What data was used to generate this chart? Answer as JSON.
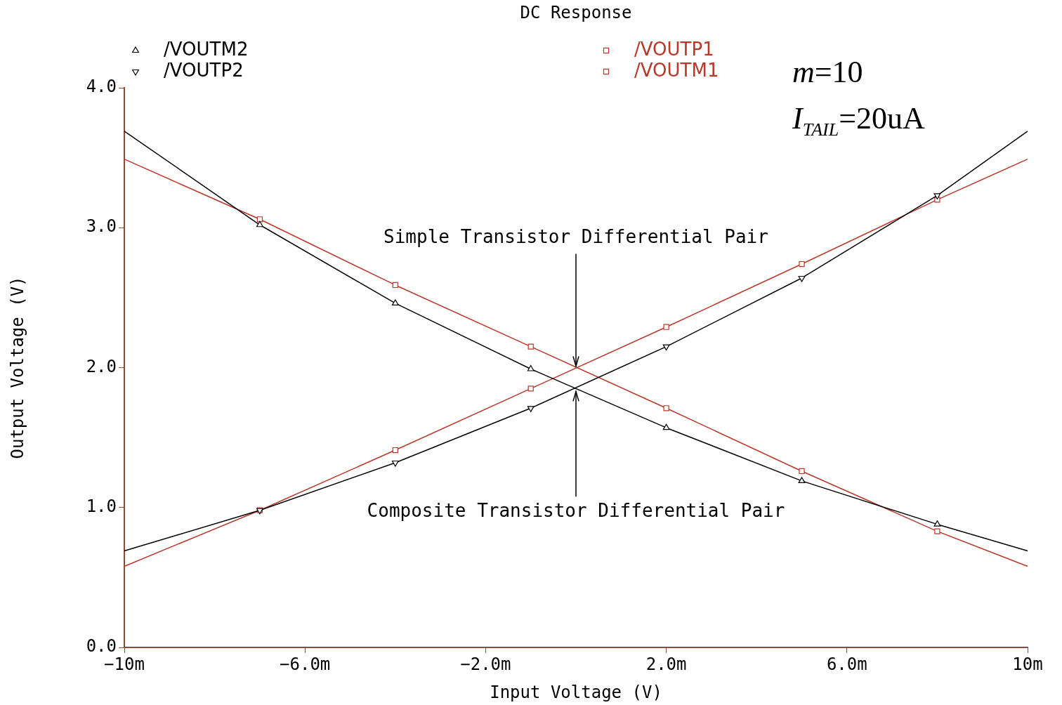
{
  "chart_data": {
    "type": "line",
    "title": "DC Response",
    "xlabel": "Input Voltage (V)",
    "ylabel": "Output Voltage (V)",
    "x": [
      -10,
      -7,
      -4,
      -1,
      2,
      5,
      8,
      10
    ],
    "series": [
      {
        "name": "/VOUTM2",
        "color": "#000000",
        "marker": "triangle",
        "values": [
          3.69,
          3.02,
          2.46,
          1.99,
          1.57,
          1.19,
          0.88,
          0.69
        ]
      },
      {
        "name": "/VOUTP2",
        "color": "#000000",
        "marker": "triangle",
        "values": [
          0.69,
          0.98,
          1.32,
          1.71,
          2.15,
          2.64,
          3.23,
          3.69
        ]
      },
      {
        "name": "/VOUTP1",
        "color": "#b8382a",
        "marker": "square",
        "values": [
          0.58,
          0.98,
          1.41,
          1.85,
          2.29,
          2.74,
          3.2,
          3.49
        ]
      },
      {
        "name": "/VOUTM1",
        "color": "#b8382a",
        "marker": "square",
        "values": [
          3.49,
          3.06,
          2.59,
          2.15,
          1.71,
          1.26,
          0.83,
          0.58
        ]
      }
    ],
    "xlim": [
      -10,
      10
    ],
    "xticks": [
      {
        "value": -10,
        "label": "−10m"
      },
      {
        "value": -6,
        "label": "−6.0m"
      },
      {
        "value": -2,
        "label": "−2.0m"
      },
      {
        "value": 2,
        "label": "2.0m"
      },
      {
        "value": 6,
        "label": "6.0m"
      },
      {
        "value": 10,
        "label": "10m"
      }
    ],
    "ylim": [
      0,
      4
    ],
    "yticks": [
      {
        "value": 0,
        "label": "0.0"
      },
      {
        "value": 1,
        "label": "1.0"
      },
      {
        "value": 2,
        "label": "2.0"
      },
      {
        "value": 3,
        "label": "3.0"
      },
      {
        "value": 4,
        "label": "4.0"
      }
    ],
    "grid": false,
    "legend": "top",
    "line_style": "solid",
    "annotations": [
      {
        "text": "Simple Transistor Differential Pair",
        "x": 0,
        "y": 2.01
      },
      {
        "text": "Composite Transistor Differential Pair",
        "x": 0,
        "y": 1.83
      },
      "m=10",
      "I$_{TAIL}$=20uA"
    ]
  }
}
